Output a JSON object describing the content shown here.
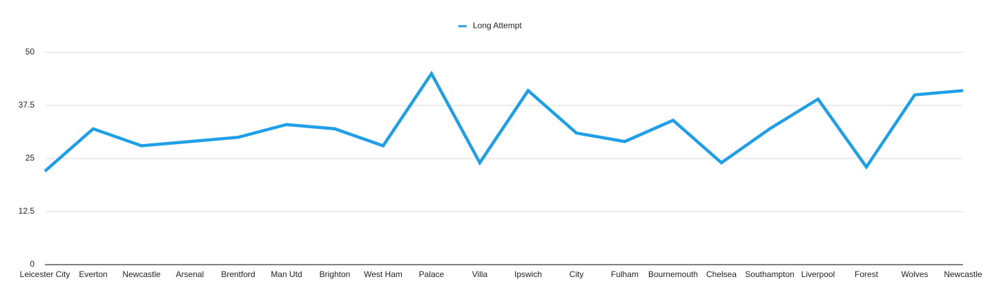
{
  "chart_data": {
    "type": "line",
    "categories": [
      "Leicester City",
      "Everton",
      "Newcastle",
      "Arsenal",
      "Brentford",
      "Man Utd",
      "Brighton",
      "West Ham",
      "Palace",
      "Villa",
      "Ipswich",
      "City",
      "Fulham",
      "Bournemouth",
      "Chelsea",
      "Southampton",
      "Liverpool",
      "Forest",
      "Wolves",
      "Newcastle"
    ],
    "series": [
      {
        "name": "Long Attempt",
        "color": "#1e9fe8",
        "values": [
          22,
          32,
          28,
          29,
          30,
          33,
          32,
          28,
          45,
          24,
          41,
          31,
          29,
          34,
          24,
          32,
          39,
          23,
          40,
          41
        ]
      }
    ],
    "ylim": [
      0,
      50
    ],
    "yticks": [
      0,
      12.5,
      25,
      37.5,
      50
    ],
    "grid": true,
    "legend": "top"
  }
}
